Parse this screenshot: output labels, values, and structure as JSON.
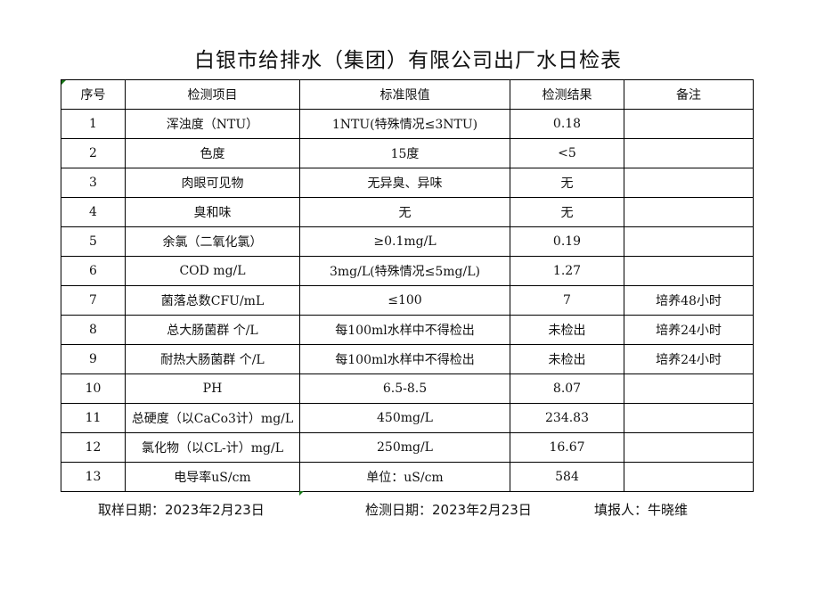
{
  "title": "白银市给排水（集团）有限公司出厂水日检表",
  "table": {
    "headers": [
      "序号",
      "检测项目",
      "标准限值",
      "检测结果",
      "备注"
    ],
    "rows": [
      [
        "1",
        "浑浊度（NTU）",
        "1NTU(特殊情况≤3NTU)",
        "0.18",
        ""
      ],
      [
        "2",
        "色度",
        "15度",
        "<5",
        ""
      ],
      [
        "3",
        "肉眼可见物",
        "无异臭、异味",
        "无",
        ""
      ],
      [
        "4",
        "臭和味",
        "无",
        "无",
        ""
      ],
      [
        "5",
        "余氯（二氧化氯）",
        "≥0.1mg/L",
        "0.19",
        ""
      ],
      [
        "6",
        "COD          mg/L",
        "3mg/L(特殊情况≤5mg/L)",
        "1.27",
        ""
      ],
      [
        "7",
        "菌落总数CFU/mL",
        "≤100",
        "7",
        "培养48小时"
      ],
      [
        "8",
        "总大肠菌群 个/L",
        "每100ml水样中不得检出",
        "未检出",
        "培养24小时"
      ],
      [
        "9",
        "耐热大肠菌群 个/L",
        "每100ml水样中不得检出",
        "未检出",
        "培养24小时"
      ],
      [
        "10",
        "PH",
        "6.5-8.5",
        "8.07",
        ""
      ],
      [
        "11",
        "总硬度（以CaCo3计）mg/L",
        "450mg/L",
        "234.83",
        ""
      ],
      [
        "12",
        "氯化物（以CL-计）mg/L",
        "250mg/L",
        "16.67",
        ""
      ],
      [
        "13",
        "电导率uS/cm",
        "单位：uS/cm",
        "584",
        ""
      ]
    ]
  },
  "footer": {
    "sampling_date": "取样日期：2023年2月23日",
    "test_date": "检测日期：2023年2月23日",
    "reporter": "填报人：牛晓维"
  }
}
